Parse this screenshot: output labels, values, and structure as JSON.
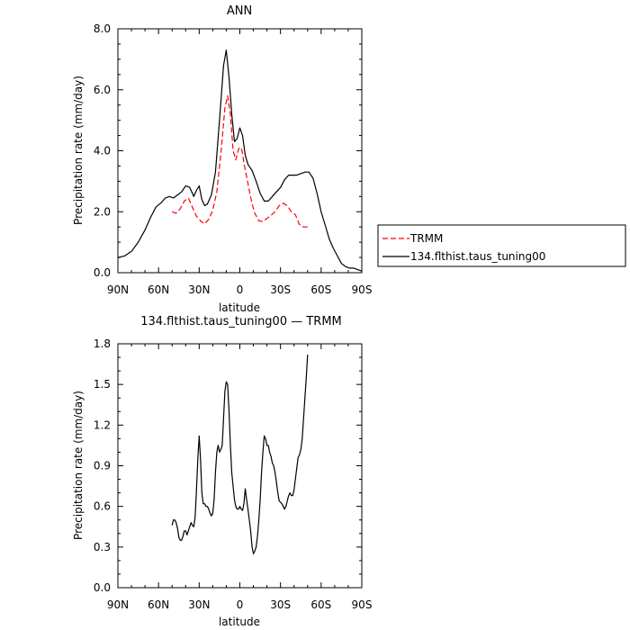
{
  "chart_data": [
    {
      "type": "line",
      "title": "ANN",
      "xlabel": "latitude",
      "ylabel": "Precipitation rate (mm/day)",
      "x_ticks": [
        {
          "lat": 90,
          "label": "90N"
        },
        {
          "lat": 60,
          "label": "60N"
        },
        {
          "lat": 30,
          "label": "30N"
        },
        {
          "lat": 0,
          "label": "0"
        },
        {
          "lat": -30,
          "label": "30S"
        },
        {
          "lat": -60,
          "label": "60S"
        },
        {
          "lat": -90,
          "label": "90S"
        }
      ],
      "xlim": [
        90,
        -90
      ],
      "ylim": [
        0,
        8
      ],
      "y_ticks": [
        {
          "value": 0,
          "label": "0.0"
        },
        {
          "value": 2,
          "label": "2.0"
        },
        {
          "value": 4,
          "label": "4.0"
        },
        {
          "value": 6,
          "label": "6.0"
        },
        {
          "value": 8,
          "label": "8.0"
        }
      ],
      "grid": false,
      "legend_position": "right",
      "series": [
        {
          "name": "TRMM",
          "color": "#ff0000",
          "dash": "dashed",
          "x": [
            50,
            47,
            44,
            41,
            38,
            35,
            32,
            29,
            26,
            23,
            20,
            17,
            14,
            11,
            9,
            7,
            5,
            3,
            1,
            0,
            -1,
            -2,
            -3,
            -5,
            -7,
            -9,
            -11,
            -14,
            -17,
            -20,
            -23,
            -26,
            -29,
            -32,
            -35,
            -38,
            -41,
            -44,
            -47,
            -50
          ],
          "y": [
            2.0,
            1.95,
            2.1,
            2.35,
            2.45,
            2.15,
            1.85,
            1.7,
            1.6,
            1.75,
            2.05,
            2.65,
            3.9,
            5.4,
            5.8,
            5.2,
            4.0,
            3.7,
            4.05,
            4.1,
            4.1,
            3.9,
            3.6,
            3.15,
            2.7,
            2.25,
            1.95,
            1.7,
            1.68,
            1.78,
            1.88,
            2.0,
            2.2,
            2.28,
            2.2,
            2.0,
            1.9,
            1.58,
            1.5,
            1.5
          ]
        },
        {
          "name": "134.flthist.taus_tuning00",
          "color": "#000000",
          "dash": "solid",
          "x": [
            90,
            85,
            80,
            75,
            70,
            66,
            62,
            58,
            55,
            52,
            49,
            46,
            43,
            40,
            37,
            34,
            32,
            30,
            28,
            26,
            24,
            21,
            18,
            15,
            12,
            10,
            8,
            6,
            4,
            2,
            0,
            -2,
            -4,
            -6,
            -9,
            -12,
            -15,
            -18,
            -21,
            -24,
            -27,
            -30,
            -33,
            -36,
            -39,
            -42,
            -45,
            -48,
            -51,
            -54,
            -57,
            -60,
            -63,
            -66,
            -69,
            -72,
            -75,
            -78,
            -81,
            -84,
            -87,
            -90
          ],
          "y": [
            0.5,
            0.55,
            0.7,
            1.0,
            1.4,
            1.8,
            2.15,
            2.3,
            2.45,
            2.5,
            2.45,
            2.55,
            2.65,
            2.85,
            2.8,
            2.5,
            2.7,
            2.85,
            2.4,
            2.2,
            2.25,
            2.55,
            3.3,
            5.0,
            6.8,
            7.3,
            6.4,
            5.2,
            4.3,
            4.4,
            4.75,
            4.5,
            3.85,
            3.55,
            3.35,
            3.0,
            2.6,
            2.35,
            2.35,
            2.5,
            2.65,
            2.8,
            3.05,
            3.2,
            3.2,
            3.2,
            3.25,
            3.3,
            3.3,
            3.1,
            2.6,
            2.0,
            1.55,
            1.1,
            0.8,
            0.55,
            0.3,
            0.2,
            0.15,
            0.15,
            0.1,
            0.05
          ]
        }
      ]
    },
    {
      "type": "line",
      "title": "134.flthist.taus_tuning00 — TRMM",
      "xlabel": "latitude",
      "ylabel": "Precipitation rate (mm/day)",
      "x_ticks": [
        {
          "lat": 90,
          "label": "90N"
        },
        {
          "lat": 60,
          "label": "60N"
        },
        {
          "lat": 30,
          "label": "30N"
        },
        {
          "lat": 0,
          "label": "0"
        },
        {
          "lat": -30,
          "label": "30S"
        },
        {
          "lat": -60,
          "label": "60S"
        },
        {
          "lat": -90,
          "label": "90S"
        }
      ],
      "xlim": [
        90,
        -90
      ],
      "ylim": [
        0,
        1.8
      ],
      "y_ticks": [
        {
          "value": 0,
          "label": "0.0"
        },
        {
          "value": 0.3,
          "label": "0.3"
        },
        {
          "value": 0.6,
          "label": "0.6"
        },
        {
          "value": 0.9,
          "label": "0.9"
        },
        {
          "value": 1.2,
          "label": "1.2"
        },
        {
          "value": 1.5,
          "label": "1.5"
        },
        {
          "value": 1.8,
          "label": "1.8"
        }
      ],
      "grid": false,
      "series": [
        {
          "color": "#000000",
          "dash": "solid",
          "x": [
            50,
            49,
            48,
            47,
            46,
            45,
            44,
            43,
            42,
            41,
            40,
            39,
            38,
            37,
            36,
            35,
            34,
            33,
            32,
            31,
            30,
            29,
            28,
            27,
            26,
            25,
            24,
            23,
            22,
            21,
            20,
            19,
            18,
            17,
            16,
            15,
            14,
            13,
            12,
            11,
            10,
            9,
            8,
            7,
            6,
            5,
            4,
            3,
            2,
            1,
            0,
            -1,
            -2,
            -3,
            -4,
            -5,
            -6,
            -7,
            -8,
            -9,
            -10,
            -11,
            -12,
            -13,
            -14,
            -15,
            -16,
            -17,
            -18,
            -19,
            -20,
            -21,
            -22,
            -23,
            -24,
            -25,
            -26,
            -27,
            -28,
            -29,
            -30,
            -31,
            -32,
            -33,
            -34,
            -35,
            -36,
            -37,
            -38,
            -39,
            -40,
            -41,
            -42,
            -43,
            -44,
            -45,
            -46,
            -47,
            -48,
            -49,
            -50
          ],
          "y": [
            0.46,
            0.5,
            0.5,
            0.48,
            0.44,
            0.37,
            0.35,
            0.35,
            0.38,
            0.42,
            0.42,
            0.39,
            0.42,
            0.45,
            0.48,
            0.46,
            0.45,
            0.52,
            0.72,
            0.95,
            1.12,
            0.95,
            0.7,
            0.62,
            0.62,
            0.6,
            0.6,
            0.58,
            0.55,
            0.53,
            0.55,
            0.65,
            0.85,
            1.0,
            1.05,
            1.0,
            1.02,
            1.05,
            1.25,
            1.45,
            1.52,
            1.5,
            1.3,
            1.05,
            0.85,
            0.75,
            0.65,
            0.6,
            0.58,
            0.58,
            0.6,
            0.58,
            0.57,
            0.62,
            0.73,
            0.65,
            0.58,
            0.5,
            0.42,
            0.3,
            0.25,
            0.27,
            0.3,
            0.38,
            0.5,
            0.65,
            0.85,
            1.0,
            1.12,
            1.1,
            1.05,
            1.05,
            1.0,
            0.97,
            0.92,
            0.9,
            0.85,
            0.78,
            0.7,
            0.64,
            0.63,
            0.62,
            0.6,
            0.58,
            0.6,
            0.64,
            0.68,
            0.7,
            0.68,
            0.68,
            0.72,
            0.8,
            0.88,
            0.96,
            0.98,
            1.02,
            1.1,
            1.25,
            1.4,
            1.55,
            1.72
          ]
        }
      ]
    }
  ]
}
